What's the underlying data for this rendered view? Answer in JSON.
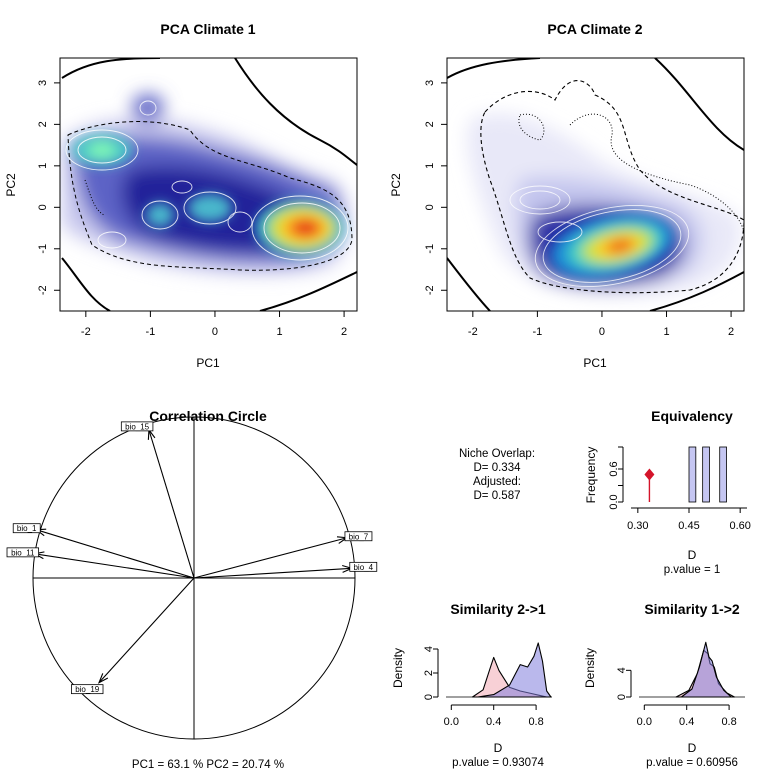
{
  "chart_data": [
    {
      "type": "heatmap",
      "title": "PCA Climate 1",
      "xlabel": "PC1",
      "ylabel": "PC2",
      "xlim": [
        -2.4,
        2.2
      ],
      "ylim": [
        -2.5,
        3.6
      ],
      "xticks": [
        "-2",
        "-1",
        "0",
        "1",
        "2"
      ],
      "yticks": [
        "-2",
        "-1",
        "0",
        "1",
        "2",
        "3"
      ],
      "hotspots": [
        {
          "x": 1.3,
          "y": -0.5,
          "intensity": 1.0
        },
        {
          "x": -1.7,
          "y": 1.4,
          "intensity": 0.55
        },
        {
          "x": -0.6,
          "y": -0.2,
          "intensity": 0.45
        },
        {
          "x": 0.0,
          "y": 0.1,
          "intensity": 0.4
        },
        {
          "x": -1.0,
          "y": 2.4,
          "intensity": 0.35
        }
      ]
    },
    {
      "type": "heatmap",
      "title": "PCA Climate 2",
      "xlabel": "PC1",
      "ylabel": "PC2",
      "xlim": [
        -2.4,
        2.2
      ],
      "ylim": [
        -2.5,
        3.6
      ],
      "xticks": [
        "-2",
        "-1",
        "0",
        "1",
        "2"
      ],
      "yticks": [
        "-2",
        "-1",
        "0",
        "1",
        "2",
        "3"
      ],
      "hotspots": [
        {
          "x": 0.3,
          "y": -1.0,
          "intensity": 1.0
        },
        {
          "x": -0.9,
          "y": 0.4,
          "intensity": 0.3
        }
      ]
    },
    {
      "type": "scatter",
      "title": "Correlation Circle",
      "caption": "PC1 =  63.1 % PC2 =  20.74 %",
      "vectors": [
        {
          "name": "bio_15",
          "x": -0.28,
          "y": 0.92
        },
        {
          "name": "bio_1",
          "x": -0.98,
          "y": 0.3
        },
        {
          "name": "bio_11",
          "x": -0.99,
          "y": 0.15
        },
        {
          "name": "bio_7",
          "x": 0.95,
          "y": 0.25
        },
        {
          "name": "bio_4",
          "x": 0.98,
          "y": 0.06
        },
        {
          "name": "bio_19",
          "x": -0.59,
          "y": -0.65
        }
      ]
    },
    {
      "type": "bar",
      "title": "Equivalency",
      "xlabel": "D",
      "ylabel": "Frequency",
      "xlim": [
        0.28,
        0.62
      ],
      "ylim": [
        0,
        1
      ],
      "xticks": [
        "0.30",
        "0.45",
        "0.60"
      ],
      "yticks": [
        "0.0",
        "0.6"
      ],
      "bins": [
        {
          "from": 0.45,
          "to": 0.47,
          "value": 1
        },
        {
          "from": 0.49,
          "to": 0.51,
          "value": 1
        },
        {
          "from": 0.54,
          "to": 0.56,
          "value": 1
        }
      ],
      "observed": 0.334,
      "pvalue_label": "p.value =  1"
    },
    {
      "type": "area",
      "title": "Similarity 2->1",
      "xlabel": "D",
      "ylabel": "Density",
      "xlim": [
        -0.05,
        0.95
      ],
      "ylim": [
        0,
        5
      ],
      "xticks": [
        "0.0",
        "0.4",
        "0.8"
      ],
      "yticks": [
        "0",
        "2",
        "4"
      ],
      "series": [
        {
          "values": [
            [
              0.2,
              0
            ],
            [
              0.3,
              0.6
            ],
            [
              0.37,
              2.5
            ],
            [
              0.4,
              3.3
            ],
            [
              0.45,
              2.2
            ],
            [
              0.55,
              0.8
            ],
            [
              0.65,
              0.5
            ],
            [
              0.75,
              0.3
            ],
            [
              0.85,
              0.1
            ],
            [
              0.9,
              0
            ]
          ]
        },
        {
          "values": [
            [
              0.25,
              0
            ],
            [
              0.4,
              0.2
            ],
            [
              0.55,
              1.0
            ],
            [
              0.65,
              2.7
            ],
            [
              0.72,
              2.5
            ],
            [
              0.78,
              3.4
            ],
            [
              0.82,
              4.5
            ],
            [
              0.86,
              3.0
            ],
            [
              0.9,
              0.5
            ],
            [
              0.94,
              0
            ]
          ]
        }
      ],
      "pvalue_label": "p.value =  0.93074"
    },
    {
      "type": "area",
      "title": "Similarity 1->2",
      "xlabel": "D",
      "ylabel": "Density",
      "xlim": [
        -0.05,
        0.95
      ],
      "ylim": [
        0,
        9
      ],
      "xticks": [
        "0.0",
        "0.4",
        "0.8"
      ],
      "yticks": [
        "0",
        "4"
      ],
      "series": [
        {
          "values": [
            [
              0.3,
              0
            ],
            [
              0.42,
              1
            ],
            [
              0.5,
              3.5
            ],
            [
              0.56,
              7
            ],
            [
              0.6,
              6.5
            ],
            [
              0.62,
              5
            ],
            [
              0.66,
              4.5
            ],
            [
              0.7,
              2
            ],
            [
              0.78,
              0.6
            ],
            [
              0.85,
              0
            ]
          ]
        },
        {
          "values": [
            [
              0.35,
              0
            ],
            [
              0.45,
              1.2
            ],
            [
              0.52,
              4.5
            ],
            [
              0.58,
              8.2
            ],
            [
              0.61,
              6
            ],
            [
              0.64,
              5.4
            ],
            [
              0.68,
              3
            ],
            [
              0.75,
              1
            ],
            [
              0.82,
              0
            ]
          ]
        }
      ],
      "pvalue_label": "p.value =  0.60956"
    }
  ],
  "overlap": {
    "line1": "Niche Overlap:",
    "line2": "D= 0.334",
    "line3": "Adjusted:",
    "line4": "D= 0.587"
  }
}
